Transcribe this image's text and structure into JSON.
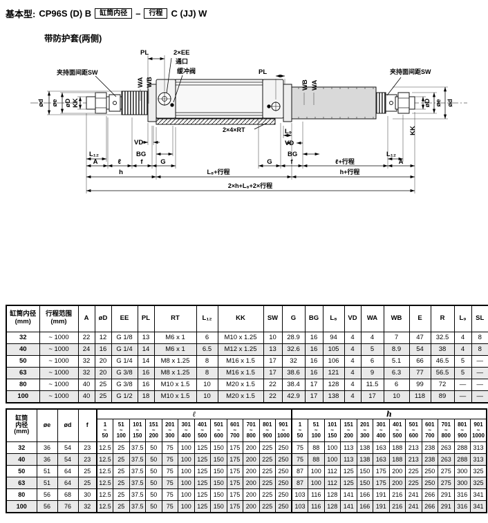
{
  "header": {
    "prefix": "基本型:",
    "model": "CP96S (D) B",
    "box1": "缸筒内径",
    "dash": "–",
    "box2": "行程",
    "suffix": "C (JJ) W"
  },
  "subtitle": "带防护套(两侧)",
  "diagram": {
    "labels": {
      "sw_left": "夹持面间距SW",
      "pl_left": "PL",
      "ee": "2×EE",
      "port": "通口",
      "cushion": "缓冲阀",
      "wa_left": "WA",
      "wb_left": "WB",
      "od_outer_left": "ød",
      "oe_left": "øe",
      "oD_left": "øD",
      "kk_left": "KK",
      "vd_left": "VD",
      "bg_left": "BG",
      "l12_left": "L₁₂",
      "a_left": "A",
      "l_left": "ℓ",
      "f_left": "f",
      "g_left": "G",
      "h_left": "h",
      "l8_stroke": "L₈+行程",
      "h_stroke": "h+行程",
      "total": "2×h+L₈+2×行程",
      "rt": "2×4×RT",
      "pl_right": "PL",
      "wb_right": "WB",
      "wa_right": "WA",
      "sw_right": "夹持面间距SW",
      "oD_right": "øD",
      "oe_right": "øe",
      "od_outer_right": "ød",
      "kk_right": "KK",
      "l9_right": "L₉",
      "vd_right": "VD",
      "bg_right": "BG",
      "g_right": "G",
      "f_right": "f",
      "l_stroke": "ℓ+行程",
      "l12_right": "L₁₂",
      "a_right": "A"
    }
  },
  "table1": {
    "headers": [
      "缸筒内径\n(mm)",
      "行程范围\n(mm)",
      "A",
      "øD",
      "EE",
      "PL",
      "RT",
      "L₁₂",
      "KK",
      "SW",
      "G",
      "BG",
      "L₈",
      "VD",
      "WA",
      "WB",
      "E",
      "R",
      "L₉",
      "SL"
    ],
    "rows": [
      [
        "32",
        "~ 1000",
        "22",
        "12",
        "G 1/8",
        "13",
        "M6 x 1",
        "6",
        "M10 x 1.25",
        "10",
        "28.9",
        "16",
        "94",
        "4",
        "4",
        "7",
        "47",
        "32.5",
        "4",
        "8"
      ],
      [
        "40",
        "~ 1000",
        "24",
        "16",
        "G 1/4",
        "14",
        "M6 x 1",
        "6.5",
        "M12 x 1.25",
        "13",
        "32.6",
        "16",
        "105",
        "4",
        "5",
        "8.9",
        "54",
        "38",
        "4",
        "8"
      ],
      [
        "50",
        "~ 1000",
        "32",
        "20",
        "G 1/4",
        "14",
        "M8 x 1.25",
        "8",
        "M16 x 1.5",
        "17",
        "32",
        "16",
        "106",
        "4",
        "6",
        "5.1",
        "66",
        "46.5",
        "5",
        "—"
      ],
      [
        "63",
        "~ 1000",
        "32",
        "20",
        "G 3/8",
        "16",
        "M8 x 1.25",
        "8",
        "M16 x 1.5",
        "17",
        "38.6",
        "16",
        "121",
        "4",
        "9",
        "6.3",
        "77",
        "56.5",
        "5",
        "—"
      ],
      [
        "80",
        "~ 1000",
        "40",
        "25",
        "G 3/8",
        "16",
        "M10 x 1.5",
        "10",
        "M20 x 1.5",
        "22",
        "38.4",
        "17",
        "128",
        "4",
        "11.5",
        "6",
        "99",
        "72",
        "—",
        "—"
      ],
      [
        "100",
        "~ 1000",
        "40",
        "25",
        "G 1/2",
        "18",
        "M10 x 1.5",
        "10",
        "M20 x 1.5",
        "22",
        "42.9",
        "17",
        "138",
        "4",
        "17",
        "10",
        "118",
        "89",
        "—",
        "—"
      ]
    ]
  },
  "table2": {
    "col_headers": [
      "缸筒\n内径\n(mm)",
      "øe",
      "ød",
      "f"
    ],
    "group1_label": "ℓ",
    "group2_label": "h",
    "ranges": [
      "1\n~\n50",
      "51\n~\n100",
      "101\n~\n150",
      "151\n~\n200",
      "201\n~\n300",
      "301\n~\n400",
      "401\n~\n500",
      "501\n~\n600",
      "601\n~\n700",
      "701\n~\n800",
      "801\n~\n900",
      "901\n~\n1000"
    ],
    "rows": [
      {
        "bore": "32",
        "oe": "36",
        "od": "54",
        "f": "23",
        "l": [
          "12.5",
          "25",
          "37.5",
          "50",
          "75",
          "100",
          "125",
          "150",
          "175",
          "200",
          "225",
          "250"
        ],
        "h": [
          "75",
          "88",
          "100",
          "113",
          "138",
          "163",
          "188",
          "213",
          "238",
          "263",
          "288",
          "313"
        ]
      },
      {
        "bore": "40",
        "oe": "36",
        "od": "54",
        "f": "23",
        "l": [
          "12.5",
          "25",
          "37.5",
          "50",
          "75",
          "100",
          "125",
          "150",
          "175",
          "200",
          "225",
          "250"
        ],
        "h": [
          "75",
          "88",
          "100",
          "113",
          "138",
          "163",
          "188",
          "213",
          "238",
          "263",
          "288",
          "313"
        ]
      },
      {
        "bore": "50",
        "oe": "51",
        "od": "64",
        "f": "25",
        "l": [
          "12.5",
          "25",
          "37.5",
          "50",
          "75",
          "100",
          "125",
          "150",
          "175",
          "200",
          "225",
          "250"
        ],
        "h": [
          "87",
          "100",
          "112",
          "125",
          "150",
          "175",
          "200",
          "225",
          "250",
          "275",
          "300",
          "325"
        ]
      },
      {
        "bore": "63",
        "oe": "51",
        "od": "64",
        "f": "25",
        "l": [
          "12.5",
          "25",
          "37.5",
          "50",
          "75",
          "100",
          "125",
          "150",
          "175",
          "200",
          "225",
          "250"
        ],
        "h": [
          "87",
          "100",
          "112",
          "125",
          "150",
          "175",
          "200",
          "225",
          "250",
          "275",
          "300",
          "325"
        ]
      },
      {
        "bore": "80",
        "oe": "56",
        "od": "68",
        "f": "30",
        "l": [
          "12.5",
          "25",
          "37.5",
          "50",
          "75",
          "100",
          "125",
          "150",
          "175",
          "200",
          "225",
          "250"
        ],
        "h": [
          "103",
          "116",
          "128",
          "141",
          "166",
          "191",
          "216",
          "241",
          "266",
          "291",
          "316",
          "341"
        ]
      },
      {
        "bore": "100",
        "oe": "56",
        "od": "76",
        "f": "32",
        "l": [
          "12.5",
          "25",
          "37.5",
          "50",
          "75",
          "100",
          "125",
          "150",
          "175",
          "200",
          "225",
          "250"
        ],
        "h": [
          "103",
          "116",
          "128",
          "141",
          "166",
          "191",
          "216",
          "241",
          "266",
          "291",
          "316",
          "341"
        ]
      }
    ]
  },
  "colors": {
    "cover_fill": "#d9d9d9",
    "alt_row": "#e9e9e9",
    "line": "#000000"
  }
}
